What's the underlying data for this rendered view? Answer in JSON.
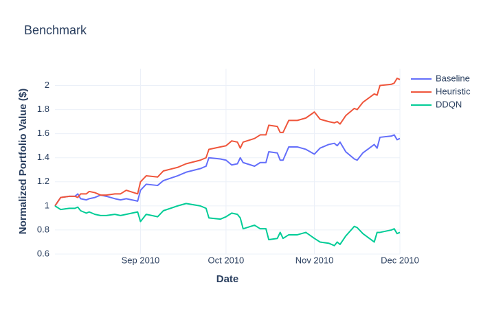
{
  "chart_data": {
    "type": "line",
    "title": "Benchmark",
    "x_label": "Date",
    "y_label": "Normalized Portfolio Value ($)",
    "x": [
      "2010-08-02",
      "2010-08-04",
      "2010-08-07",
      "2010-08-09",
      "2010-08-10",
      "2010-08-11",
      "2010-08-13",
      "2010-08-14",
      "2010-08-16",
      "2010-08-18",
      "2010-08-20",
      "2010-08-23",
      "2010-08-25",
      "2010-08-27",
      "2010-08-31",
      "2010-09-01",
      "2010-09-03",
      "2010-09-07",
      "2010-09-09",
      "2010-09-14",
      "2010-09-17",
      "2010-09-22",
      "2010-09-24",
      "2010-09-25",
      "2010-09-29",
      "2010-10-01",
      "2010-10-03",
      "2010-10-05",
      "2010-10-06",
      "2010-10-07",
      "2010-10-11",
      "2010-10-13",
      "2010-10-15",
      "2010-10-16",
      "2010-10-19",
      "2010-10-20",
      "2010-10-21",
      "2010-10-23",
      "2010-10-26",
      "2010-10-29",
      "2010-11-01",
      "2010-11-03",
      "2010-11-06",
      "2010-11-08",
      "2010-11-09",
      "2010-11-10",
      "2010-11-12",
      "2010-11-15",
      "2010-11-16",
      "2010-11-18",
      "2010-11-22",
      "2010-11-23",
      "2010-11-24",
      "2010-11-28",
      "2010-11-29",
      "2010-11-30",
      "2010-12-01"
    ],
    "series": [
      {
        "name": "Baseline",
        "color": "#636efa",
        "values": [
          1.0,
          1.07,
          1.08,
          1.08,
          1.1,
          1.06,
          1.05,
          1.06,
          1.07,
          1.09,
          1.08,
          1.06,
          1.05,
          1.06,
          1.04,
          1.13,
          1.18,
          1.17,
          1.21,
          1.25,
          1.28,
          1.31,
          1.33,
          1.4,
          1.39,
          1.38,
          1.34,
          1.35,
          1.4,
          1.36,
          1.33,
          1.36,
          1.36,
          1.45,
          1.44,
          1.38,
          1.38,
          1.49,
          1.49,
          1.47,
          1.43,
          1.48,
          1.51,
          1.52,
          1.5,
          1.53,
          1.45,
          1.39,
          1.38,
          1.44,
          1.51,
          1.48,
          1.57,
          1.58,
          1.59,
          1.55,
          1.56
        ]
      },
      {
        "name": "Heuristic",
        "color": "#EF553B",
        "values": [
          1.0,
          1.07,
          1.08,
          1.08,
          1.07,
          1.1,
          1.1,
          1.12,
          1.11,
          1.09,
          1.09,
          1.1,
          1.1,
          1.13,
          1.1,
          1.2,
          1.25,
          1.24,
          1.29,
          1.32,
          1.35,
          1.38,
          1.4,
          1.47,
          1.49,
          1.5,
          1.54,
          1.53,
          1.48,
          1.53,
          1.56,
          1.59,
          1.59,
          1.67,
          1.66,
          1.61,
          1.61,
          1.71,
          1.71,
          1.73,
          1.78,
          1.72,
          1.7,
          1.69,
          1.7,
          1.68,
          1.75,
          1.81,
          1.8,
          1.86,
          1.93,
          1.92,
          2.0,
          2.01,
          2.02,
          2.06,
          2.05
        ]
      },
      {
        "name": "DDQN",
        "color": "#00cc96",
        "values": [
          1.0,
          0.97,
          0.98,
          0.98,
          0.99,
          0.96,
          0.94,
          0.95,
          0.93,
          0.92,
          0.92,
          0.93,
          0.92,
          0.93,
          0.95,
          0.87,
          0.93,
          0.91,
          0.96,
          1.0,
          1.02,
          1.0,
          0.98,
          0.9,
          0.89,
          0.91,
          0.94,
          0.93,
          0.9,
          0.81,
          0.84,
          0.81,
          0.81,
          0.72,
          0.73,
          0.78,
          0.73,
          0.76,
          0.76,
          0.78,
          0.73,
          0.7,
          0.69,
          0.67,
          0.7,
          0.68,
          0.75,
          0.83,
          0.82,
          0.77,
          0.7,
          0.78,
          0.78,
          0.8,
          0.81,
          0.77,
          0.78
        ]
      }
    ],
    "xlim": [
      "2010-08-02",
      "2010-12-01"
    ],
    "xticks": [
      {
        "value": "2010-09-01",
        "label": "Sep 2010"
      },
      {
        "value": "2010-10-01",
        "label": "Oct 2010"
      },
      {
        "value": "2010-11-01",
        "label": "Nov 2010"
      },
      {
        "value": "2010-12-01",
        "label": "Dec 2010"
      }
    ],
    "ylim": [
      0.6,
      2.14
    ],
    "yticks": [
      0.6,
      0.8,
      1,
      1.2,
      1.4,
      1.6,
      1.8,
      2
    ],
    "grid": true,
    "legend": "top-right"
  }
}
